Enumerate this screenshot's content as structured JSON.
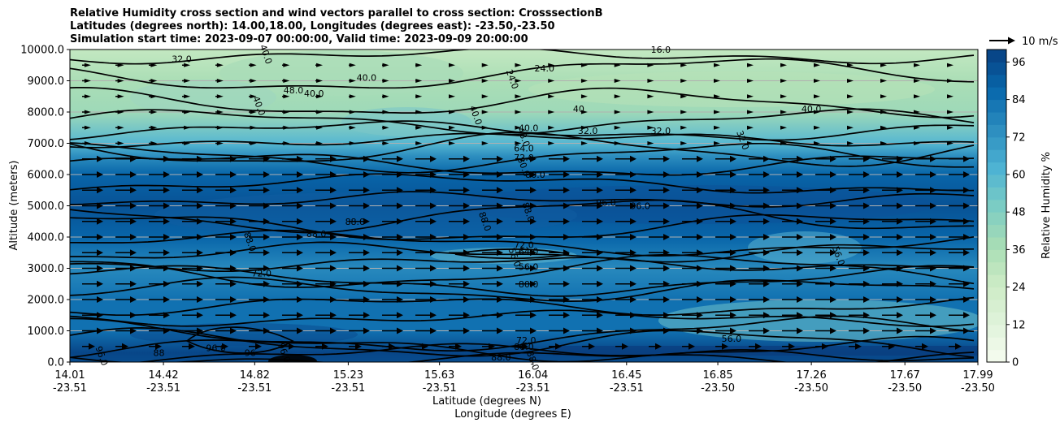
{
  "chart_data": {
    "type": "contour",
    "title_lines": [
      "Relative Humidity cross section and wind vectors parallel to cross section: CrosssectionB",
      "Latitudes (degrees north): 14.00,18.00, Longitudes (degrees east): -23.50,-23.50",
      "Simulation start time: 2023-09-07 00:00:00, Valid time: 2023-09-09 20:00:00"
    ],
    "xlabel_lines": [
      "Latitude (degrees N)",
      "Longitude (degrees E)"
    ],
    "ylabel": "Altitude (meters)",
    "x_ticks": [
      {
        "lat": "14.01",
        "lon": "-23.51"
      },
      {
        "lat": "14.42",
        "lon": "-23.51"
      },
      {
        "lat": "14.82",
        "lon": "-23.51"
      },
      {
        "lat": "15.23",
        "lon": "-23.51"
      },
      {
        "lat": "15.63",
        "lon": "-23.51"
      },
      {
        "lat": "16.04",
        "lon": "-23.51"
      },
      {
        "lat": "16.45",
        "lon": "-23.51"
      },
      {
        "lat": "16.85",
        "lon": "-23.50"
      },
      {
        "lat": "17.26",
        "lon": "-23.50"
      },
      {
        "lat": "17.67",
        "lon": "-23.50"
      },
      {
        "lat": "17.99",
        "lon": "-23.50"
      }
    ],
    "xlim": [
      14.01,
      17.99
    ],
    "y_ticks": [
      "0.0",
      "1000.0",
      "2000.0",
      "3000.0",
      "4000.0",
      "5000.0",
      "6000.0",
      "7000.0",
      "8000.0",
      "9000.0",
      "10000.0"
    ],
    "ylim": [
      0,
      10000
    ],
    "grid": "horizontal",
    "colorbar": {
      "label": "Relative Humidity %",
      "ticks": [
        "0",
        "12",
        "24",
        "36",
        "48",
        "60",
        "72",
        "84",
        "96"
      ],
      "range": [
        0,
        100
      ],
      "colormap": "GnBu"
    },
    "quiver_key": {
      "label": "10 m/s"
    },
    "rh_profile": [
      {
        "altitude": 0,
        "rh": 96
      },
      {
        "altitude": 300,
        "rh": 98
      },
      {
        "altitude": 1000,
        "rh": 84
      },
      {
        "altitude": 2000,
        "rh": 84
      },
      {
        "altitude": 3000,
        "rh": 76
      },
      {
        "altitude": 4000,
        "rh": 88
      },
      {
        "altitude": 5000,
        "rh": 94
      },
      {
        "altitude": 6000,
        "rh": 88
      },
      {
        "altitude": 6600,
        "rh": 74
      },
      {
        "altitude": 7000,
        "rh": 60
      },
      {
        "altitude": 8000,
        "rh": 40
      },
      {
        "altitude": 9000,
        "rh": 36
      },
      {
        "altitude": 10000,
        "rh": 28
      }
    ],
    "contour_labels": [
      {
        "text": "96.0",
        "lat": 14.15,
        "alt": 200
      },
      {
        "text": "96.0",
        "lat": 14.65,
        "alt": 450
      },
      {
        "text": "96",
        "lat": 14.8,
        "alt": 300
      },
      {
        "text": "96.0",
        "lat": 14.95,
        "alt": 300
      },
      {
        "text": "88",
        "lat": 14.4,
        "alt": 300
      },
      {
        "text": "72.0",
        "lat": 14.85,
        "alt": 2850
      },
      {
        "text": "88.0",
        "lat": 14.8,
        "alt": 3850
      },
      {
        "text": "88.0",
        "lat": 15.09,
        "alt": 4100
      },
      {
        "text": "88.0",
        "lat": 15.26,
        "alt": 4500
      },
      {
        "text": "88.0",
        "lat": 15.83,
        "alt": 4500
      },
      {
        "text": "72.0",
        "lat": 16.0,
        "alt": 3750
      },
      {
        "text": "64.0",
        "lat": 16.02,
        "alt": 3550
      },
      {
        "text": "56.0",
        "lat": 15.96,
        "alt": 3350
      },
      {
        "text": "56.0",
        "lat": 16.02,
        "alt": 3050
      },
      {
        "text": "80.0",
        "lat": 16.02,
        "alt": 2500
      },
      {
        "text": "88.0",
        "lat": 16.02,
        "alt": 4800
      },
      {
        "text": "96.0",
        "lat": 16.36,
        "alt": 5100
      },
      {
        "text": "96.0",
        "lat": 16.51,
        "alt": 5000
      },
      {
        "text": "56.0",
        "lat": 17.38,
        "alt": 3400
      },
      {
        "text": "72.0",
        "lat": 16.01,
        "alt": 700
      },
      {
        "text": "88.0",
        "lat": 16.0,
        "alt": 500
      },
      {
        "text": "88.0",
        "lat": 16.04,
        "alt": 50
      },
      {
        "text": "88.0",
        "lat": 15.9,
        "alt": 150
      },
      {
        "text": "56.0",
        "lat": 16.91,
        "alt": 750
      },
      {
        "text": "48.0",
        "lat": 16.0,
        "alt": 7200
      },
      {
        "text": "64.0",
        "lat": 16.0,
        "alt": 6850
      },
      {
        "text": "72.0",
        "lat": 16.0,
        "alt": 6550
      },
      {
        "text": "80.0",
        "lat": 16.0,
        "alt": 6250
      },
      {
        "text": "80.0",
        "lat": 16.05,
        "alt": 6000
      },
      {
        "text": "40.0",
        "lat": 16.02,
        "alt": 7500
      },
      {
        "text": "40.0",
        "lat": 15.79,
        "alt": 7900
      },
      {
        "text": "32.0",
        "lat": 16.28,
        "alt": 7400
      },
      {
        "text": "32.0",
        "lat": 16.6,
        "alt": 7400
      },
      {
        "text": "32.0",
        "lat": 16.96,
        "alt": 7100
      },
      {
        "text": "40.0",
        "lat": 17.26,
        "alt": 8100
      },
      {
        "text": "40.0",
        "lat": 15.08,
        "alt": 8600
      },
      {
        "text": "40.0",
        "lat": 14.84,
        "alt": 8200
      },
      {
        "text": "48.0",
        "lat": 14.99,
        "alt": 8700
      },
      {
        "text": "40.0",
        "lat": 15.31,
        "alt": 9100
      },
      {
        "text": "40.0",
        "lat": 14.87,
        "alt": 9850
      },
      {
        "text": "32.0",
        "lat": 14.5,
        "alt": 9700
      },
      {
        "text": "24.0",
        "lat": 16.09,
        "alt": 9400
      },
      {
        "text": "24.0",
        "lat": 15.95,
        "alt": 9050
      },
      {
        "text": "40",
        "lat": 16.24,
        "alt": 8100
      },
      {
        "text": "16.0",
        "lat": 16.6,
        "alt": 10000
      }
    ]
  }
}
